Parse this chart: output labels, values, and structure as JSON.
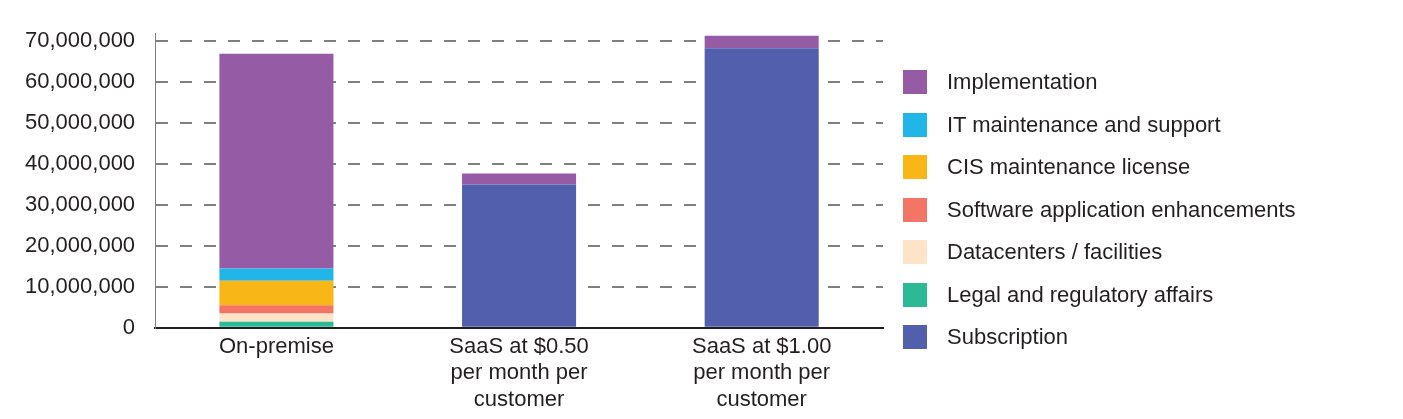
{
  "chart_data": {
    "type": "bar",
    "stacked": true,
    "categories": [
      "On-premise",
      "SaaS at $0.50 per month per customer",
      "SaaS at $1.00 per month per customer"
    ],
    "series": [
      {
        "name": "Subscription",
        "color": "#525fac",
        "values": [
          null,
          35000000,
          68300000
        ]
      },
      {
        "name": "Legal and regulatory affairs",
        "color": "#2cb996",
        "values": [
          1500000,
          null,
          null
        ]
      },
      {
        "name": "Datacenters / facilities",
        "color": "#fde3c8",
        "values": [
          2000000,
          null,
          null
        ]
      },
      {
        "name": "Software application enhancements",
        "color": "#f37565",
        "values": [
          2000000,
          null,
          null
        ]
      },
      {
        "name": "CIS maintenance license",
        "color": "#f8b716",
        "values": [
          6000000,
          null,
          null
        ]
      },
      {
        "name": "IT maintenance and support",
        "color": "#22b6e8",
        "values": [
          3000000,
          null,
          null
        ]
      },
      {
        "name": "Implementation",
        "color": "#955ba5",
        "values": [
          52500000,
          2700000,
          3100000
        ]
      }
    ],
    "ylim": [
      0,
      72000000
    ],
    "yticks": [
      {
        "value": 0,
        "label": "0"
      },
      {
        "value": 10000000,
        "label": "10,000,000"
      },
      {
        "value": 20000000,
        "label": "20,000,000"
      },
      {
        "value": 30000000,
        "label": "30,000,000"
      },
      {
        "value": 40000000,
        "label": "40,000,000"
      },
      {
        "value": 50000000,
        "label": "50,000,000"
      },
      {
        "value": 60000000,
        "label": "60,000,000"
      },
      {
        "value": 70000000,
        "label": "70,000,000"
      }
    ],
    "grid": "y",
    "legend": "right"
  }
}
